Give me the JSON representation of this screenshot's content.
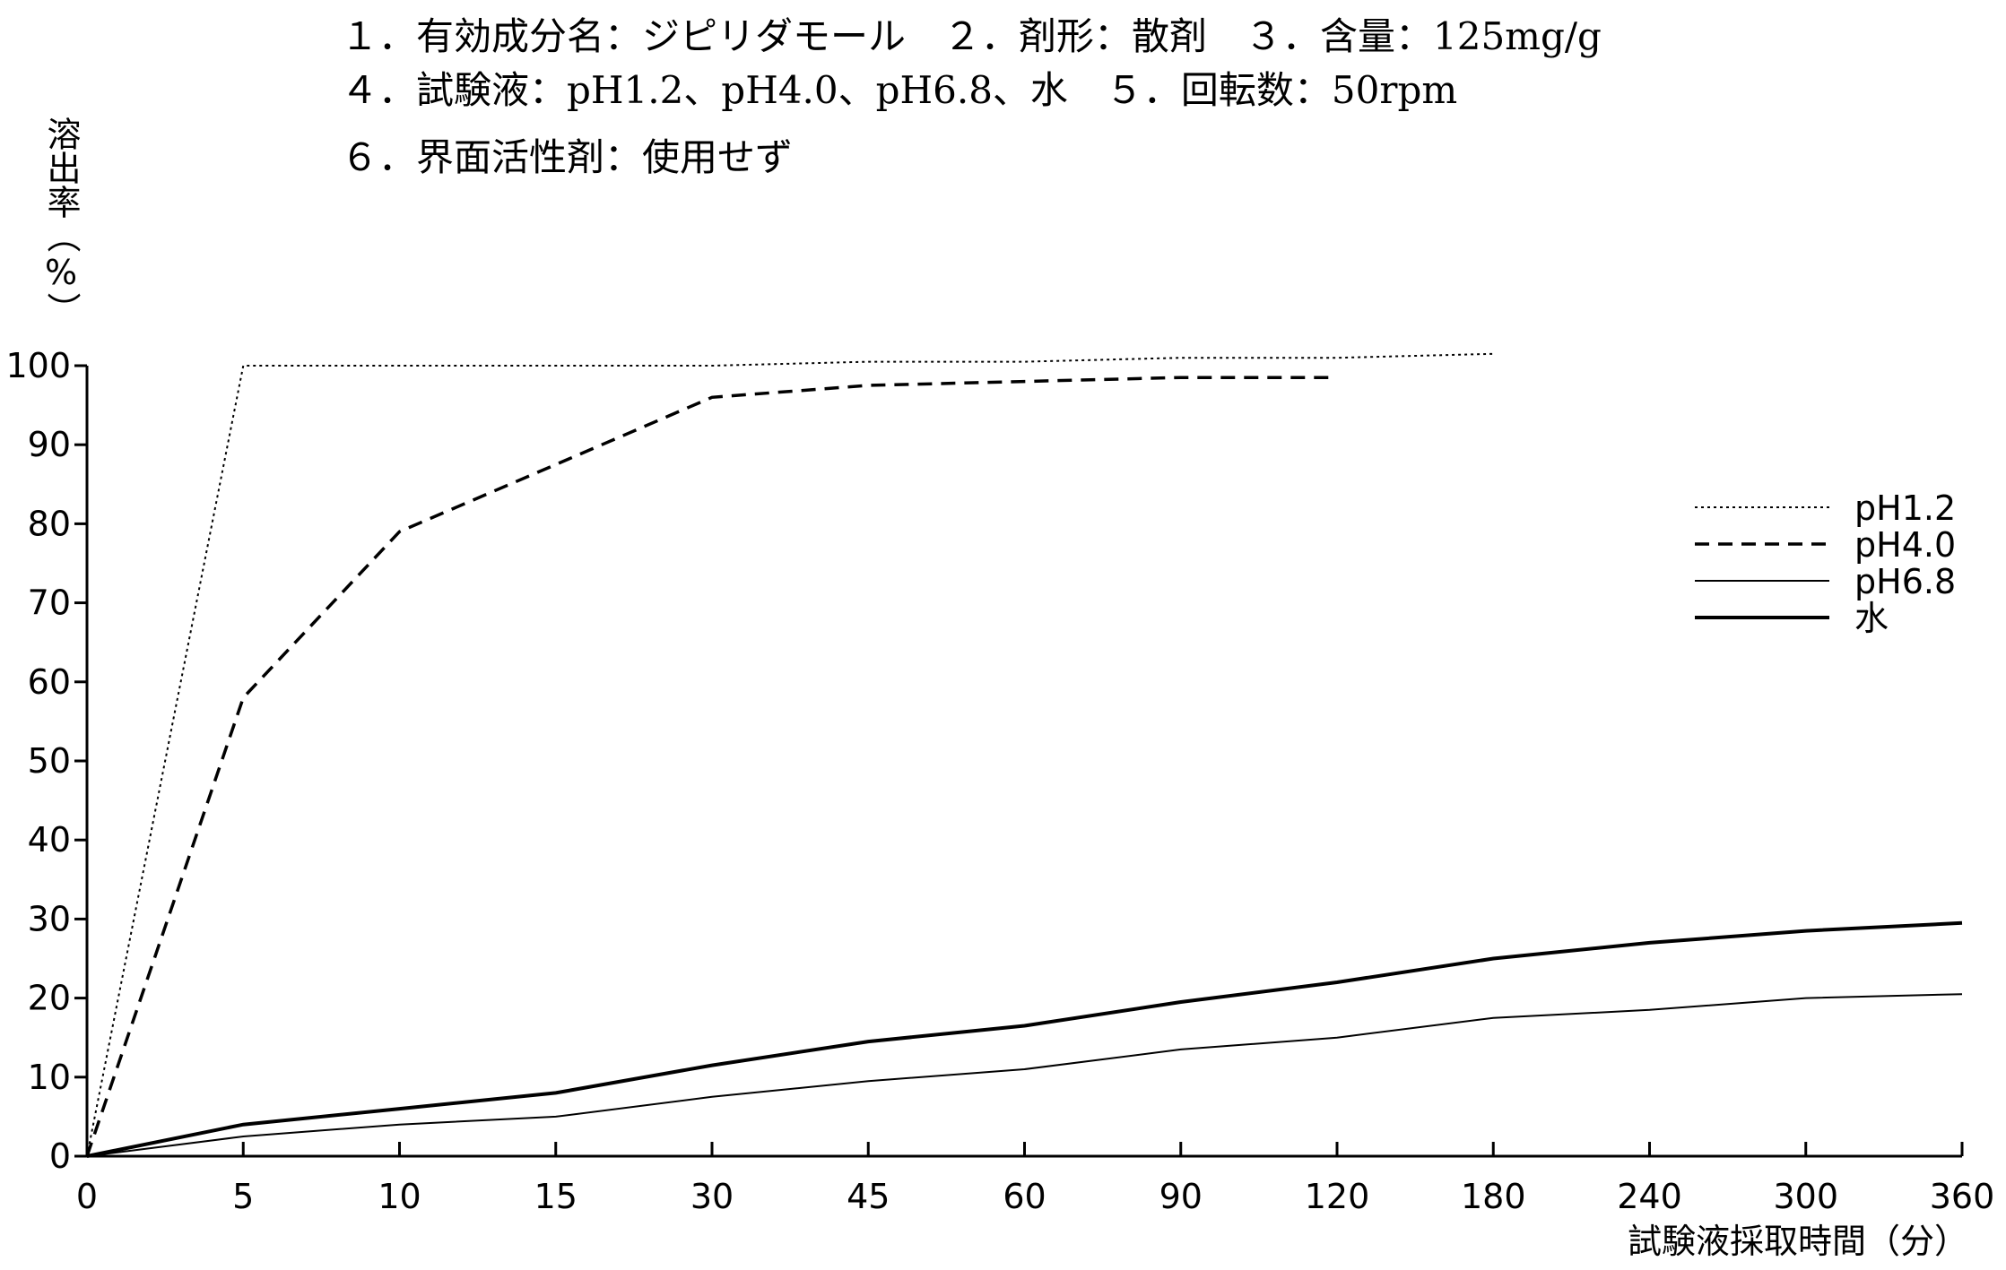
{
  "header": {
    "line1": "１．有効成分名：ジピリダモール　２．剤形：散剤　３．含量：125mg/g",
    "line2": "４．試験液：pH1.2、pH4.0、pH6.8、水　５．回転数：50rpm",
    "line3": "６．界面活性剤：使用せず"
  },
  "chart_data": {
    "type": "line",
    "ylabel": "溶出率（%）",
    "xlabel": "試験液採取時間（分）",
    "categories": [
      "0",
      "5",
      "10",
      "15",
      "30",
      "45",
      "60",
      "90",
      "120",
      "180",
      "240",
      "300",
      "360"
    ],
    "ylim": [
      0,
      100
    ],
    "yticks": [
      "0",
      "10",
      "20",
      "30",
      "40",
      "50",
      "60",
      "70",
      "80",
      "90",
      "100"
    ],
    "grid": false,
    "legend_position": "right",
    "series": [
      {
        "name": "pH1.2",
        "style": "dotted",
        "color": "#000000",
        "values": [
          0,
          100,
          100,
          100,
          100,
          100.5,
          100.5,
          101,
          101,
          101.5,
          null,
          null,
          null
        ]
      },
      {
        "name": "pH4.0",
        "style": "dashed",
        "color": "#000000",
        "values": [
          0,
          58,
          79,
          87.5,
          96,
          97.5,
          98,
          98.5,
          98.5,
          null,
          null,
          null,
          null
        ]
      },
      {
        "name": "pH6.8",
        "style": "thin",
        "color": "#000000",
        "values": [
          0,
          2.5,
          4,
          5,
          7.5,
          9.5,
          11,
          13.5,
          15,
          17.5,
          18.5,
          20,
          20.5
        ]
      },
      {
        "name": "水",
        "style": "thick",
        "color": "#000000",
        "values": [
          0,
          4,
          6,
          8,
          11.5,
          14.5,
          16.5,
          19.5,
          22,
          25,
          27,
          28.5,
          29.5
        ]
      }
    ]
  }
}
